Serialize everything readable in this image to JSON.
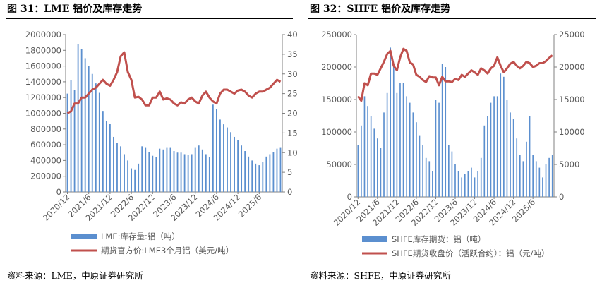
{
  "colors": {
    "bar": "#5b8fcf",
    "line": "#c0504d",
    "axis": "#808080",
    "text": "#595959"
  },
  "chart_data": [
    {
      "type": "bar+line",
      "title": "图 31：LME 铝价及库存走势",
      "source": "资料来源：LME，中原证券研究所",
      "x_labels": [
        "2020/12",
        "2021/6",
        "2021/12",
        "2022/6",
        "2022/12",
        "2023/6",
        "2023/12",
        "2024/6",
        "2024/12",
        "2025/6"
      ],
      "x_label_index": [
        0,
        6,
        12,
        18,
        24,
        30,
        36,
        42,
        48,
        54
      ],
      "left_axis": {
        "ticks": [
          "0",
          "200000",
          "400000",
          "600000",
          "800000",
          "1000000",
          "1200000",
          "1400000",
          "1600000",
          "1800000",
          "2000000"
        ],
        "min": 0,
        "max": 2000000
      },
      "right_axis": {
        "ticks": [
          "0",
          "5",
          "10",
          "15",
          "20",
          "25",
          "30",
          "35",
          "40"
        ],
        "min": 0,
        "max": 40
      },
      "series": [
        {
          "name": "LME:库存量:铝（吨）",
          "kind": "bar",
          "values": [
            1250000,
            1420000,
            1300000,
            1880000,
            1820000,
            1700000,
            1600000,
            1500000,
            1380000,
            1260000,
            1030000,
            900000,
            870000,
            700000,
            620000,
            580000,
            480000,
            400000,
            300000,
            280000,
            360000,
            580000,
            560000,
            510000,
            460000,
            440000,
            550000,
            540000,
            560000,
            560000,
            520000,
            500000,
            500000,
            480000,
            470000,
            480000,
            560000,
            590000,
            540000,
            480000,
            440000,
            1110000,
            1050000,
            920000,
            860000,
            820000,
            760000,
            700000,
            660000,
            590000,
            520000,
            450000,
            400000,
            360000,
            340000,
            380000,
            450000,
            480000,
            510000,
            550000,
            560000
          ]
        },
        {
          "name": "期货官方价:LME3个月铝（美元/吨）",
          "kind": "line",
          "values": [
            20,
            20.5,
            22.5,
            22.5,
            24,
            24,
            25,
            26,
            26.5,
            27.5,
            28.5,
            27.5,
            27,
            28.5,
            30.5,
            34.5,
            35.5,
            30.5,
            28.5,
            24,
            24.2,
            23.5,
            22,
            22,
            24,
            24,
            25.5,
            23.5,
            23.8,
            23.5,
            22.5,
            22,
            22.8,
            22.5,
            23.5,
            24,
            23,
            22.5,
            24.5,
            25.5,
            24,
            23,
            22.5,
            25,
            26,
            26,
            25.5,
            25,
            25.8,
            26,
            25.5,
            24.5,
            24,
            25,
            25.5,
            25.5,
            26,
            26.5,
            27.5,
            28.5,
            28
          ]
        }
      ]
    },
    {
      "type": "bar+line",
      "title": "图 32：SHFE 铝价及库存走势",
      "source": "资料来源：SHFE，中原证券研究所",
      "x_labels": [
        "2020/12",
        "2021/6",
        "2021/12",
        "2022/6",
        "2022/12",
        "2023/6",
        "2023/12",
        "2024/6",
        "2024/12",
        "2025/6"
      ],
      "x_label_index": [
        0,
        6,
        12,
        18,
        24,
        30,
        36,
        42,
        48,
        54
      ],
      "left_axis": {
        "ticks": [
          "0",
          "50000",
          "100000",
          "150000",
          "200000",
          "250000"
        ],
        "min": 0,
        "max": 250000
      },
      "right_axis": {
        "ticks": [
          "0",
          "5000",
          "10000",
          "15000",
          "20000",
          "25000"
        ],
        "min": 0,
        "max": 25000
      },
      "series": [
        {
          "name": "SHFE库存期货：铝（吨）",
          "kind": "bar",
          "values": [
            80000,
            110000,
            155000,
            140000,
            125000,
            105000,
            90000,
            75000,
            130000,
            160000,
            230000,
            205000,
            160000,
            175000,
            175000,
            155000,
            145000,
            130000,
            115000,
            95000,
            80000,
            60000,
            55000,
            40000,
            150000,
            145000,
            205000,
            200000,
            80000,
            70000,
            50000,
            40000,
            30000,
            35000,
            40000,
            45000,
            30000,
            40000,
            60000,
            110000,
            125000,
            145000,
            155000,
            155000,
            190000,
            185000,
            150000,
            130000,
            120000,
            90000,
            65000,
            55000,
            85000,
            125000,
            65000,
            55000,
            45000,
            30000,
            50000,
            60000,
            65000
          ]
        },
        {
          "name": "SHFE期货收盘价（活跃合约）：铝（元/吨）",
          "kind": "line",
          "values": [
            15500,
            14800,
            17500,
            17200,
            19000,
            19000,
            18800,
            19800,
            20800,
            22000,
            22500,
            20200,
            19500,
            21500,
            22800,
            22500,
            20700,
            20400,
            18800,
            18500,
            18000,
            17700,
            18600,
            18400,
            18400,
            17200,
            18500,
            17800,
            17800,
            17700,
            18200,
            18000,
            18800,
            18500,
            19000,
            19500,
            19200,
            18800,
            19800,
            19500,
            19000,
            19800,
            20200,
            21500,
            20200,
            19200,
            19800,
            20500,
            20800,
            20200,
            19800,
            20200,
            20800,
            20600,
            20000,
            20200,
            20600,
            20600,
            20900,
            21400,
            21800
          ]
        }
      ]
    }
  ]
}
